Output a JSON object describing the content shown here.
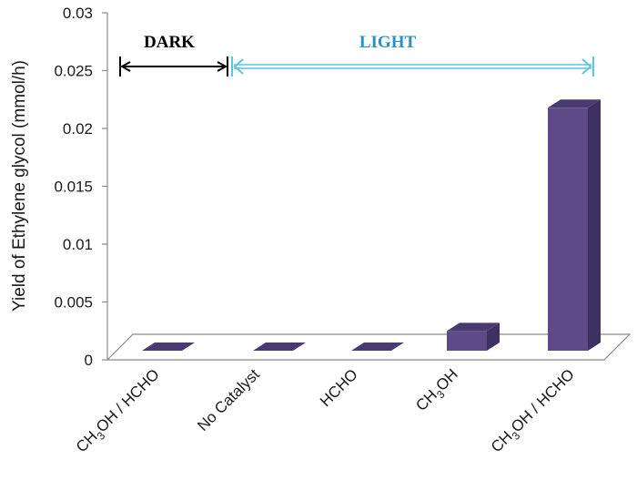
{
  "chart_data": {
    "type": "bar",
    "style": "3d",
    "title": "",
    "xlabel": "",
    "ylabel": "Yield of Ethylene glycol (mmol/h)",
    "ylim": [
      0,
      0.03
    ],
    "yticks": [
      "0",
      "0.005",
      "0.01",
      "0.015",
      "0.02",
      "0.025",
      "0.03"
    ],
    "categories": [
      {
        "main": "CH",
        "sub": "3",
        "rest": "OH / HCHO"
      },
      {
        "main": "No Catalyst",
        "sub": "",
        "rest": ""
      },
      {
        "main": "HCHO",
        "sub": "",
        "rest": ""
      },
      {
        "main": "CH",
        "sub": "3",
        "rest": "OH"
      },
      {
        "main": "CH",
        "sub": "3",
        "rest": "OH / HCHO"
      }
    ],
    "values": [
      0,
      0,
      0,
      0.0017,
      0.021
    ],
    "grid": false,
    "annotations": [
      {
        "text": "DARK",
        "from_category": 0,
        "to_category": 0,
        "color": "#000000"
      },
      {
        "text": "LIGHT",
        "from_category": 1,
        "to_category": 4,
        "color": "#2a8fc4"
      }
    ],
    "colors": {
      "bar_front": "#5e4a86",
      "bar_side": "#3e3060",
      "bar_top": "#4a3a72",
      "axis": "#8a8a8a",
      "floor": "#ffffff",
      "dark_arrow": "#000000",
      "light_arrow": "#5cc4e6"
    }
  }
}
